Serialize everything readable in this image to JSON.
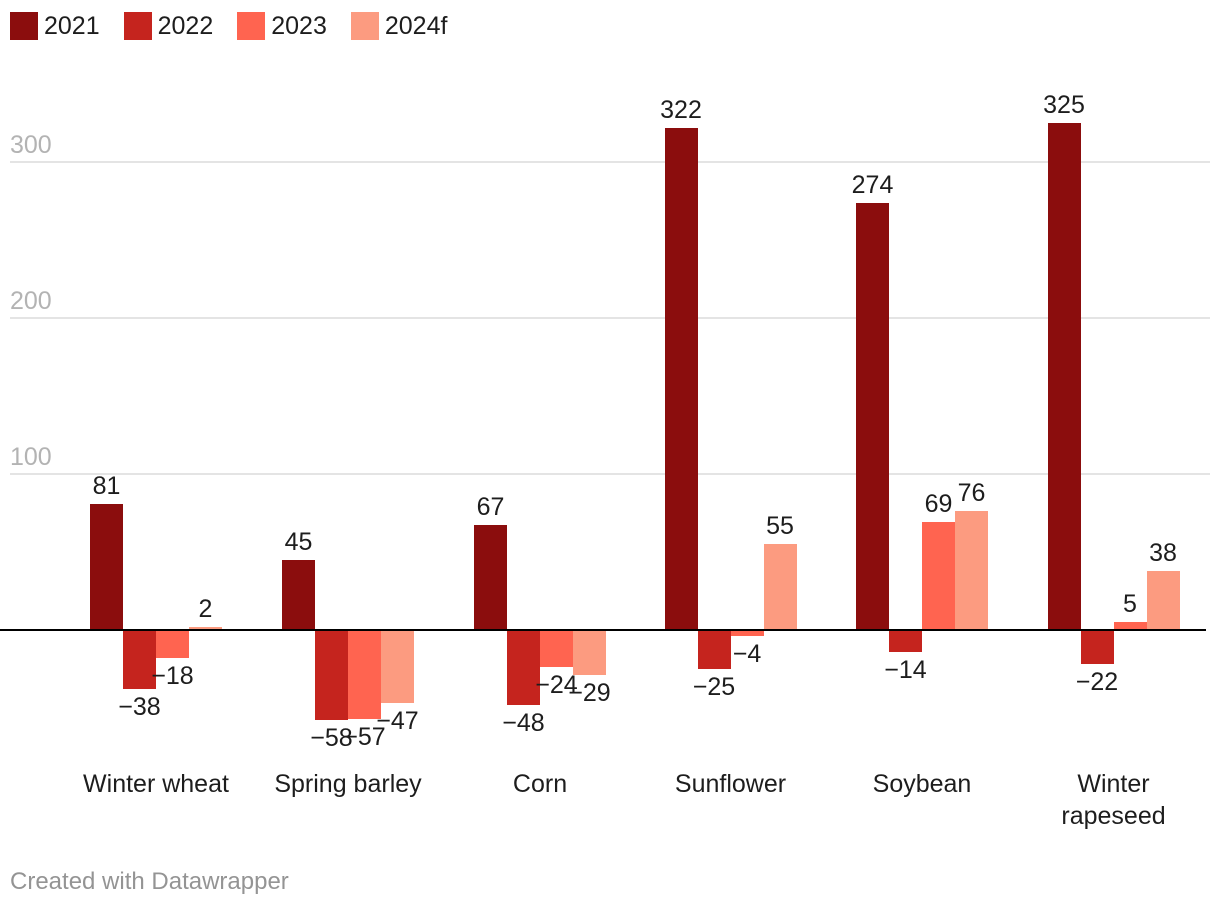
{
  "legend": {
    "items": [
      {
        "label": "2021",
        "color": "#8b0d0d"
      },
      {
        "label": "2022",
        "color": "#c5241e"
      },
      {
        "label": "2023",
        "color": "#ff6450"
      },
      {
        "label": "2024f",
        "color": "#fc9b80"
      }
    ]
  },
  "chart_data": {
    "type": "bar",
    "categories": [
      "Winter wheat",
      "Spring barley",
      "Corn",
      "Sunflower",
      "Soybean",
      "Winter rapeseed"
    ],
    "series": [
      {
        "name": "2021",
        "color": "#8b0d0d",
        "values": [
          81,
          45,
          67,
          322,
          274,
          325
        ]
      },
      {
        "name": "2022",
        "color": "#c5241e",
        "values": [
          -38,
          -58,
          -48,
          -25,
          -14,
          -22
        ]
      },
      {
        "name": "2023",
        "color": "#ff6450",
        "values": [
          -18,
          -57,
          -24,
          -4,
          69,
          5
        ]
      },
      {
        "name": "2024f",
        "color": "#fc9b80",
        "values": [
          2,
          -47,
          -29,
          55,
          76,
          38
        ]
      }
    ],
    "yticks": [
      100,
      200,
      300
    ],
    "ylim": [
      -75,
      355
    ],
    "grid": true,
    "legend_position": "top-left",
    "zero_line": true,
    "title": "",
    "xlabel": "",
    "ylabel": ""
  },
  "colors": {
    "gridline": "#e4e4e4",
    "tick_text": "#b3b3b3",
    "label_text": "#1d1d1d",
    "zero_line": "#000000"
  },
  "footer": {
    "text": "Created with Datawrapper"
  }
}
